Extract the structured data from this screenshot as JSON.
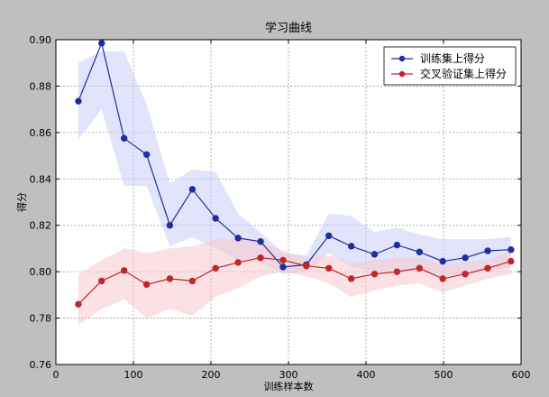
{
  "chart_data": {
    "type": "line",
    "title": "学习曲线",
    "xlabel": "训练样本数",
    "ylabel": "得分",
    "xlim": [
      0,
      600
    ],
    "ylim": [
      0.76,
      0.9
    ],
    "xticks": [
      0,
      100,
      200,
      300,
      400,
      500,
      600
    ],
    "yticks": [
      0.76,
      0.78,
      0.8,
      0.82,
      0.84,
      0.86,
      0.88,
      0.9
    ],
    "grid": true,
    "legend_position": "top-right",
    "x": [
      29,
      59,
      88,
      117,
      147,
      176,
      206,
      235,
      264,
      293,
      323,
      352,
      381,
      411,
      440,
      469,
      499,
      528,
      557,
      587
    ],
    "series": [
      {
        "name": "训练集上得分",
        "color": "#1f2f9f",
        "band_color": "#c9cef5",
        "values": [
          0.8735,
          0.8985,
          0.8575,
          0.8505,
          0.82,
          0.8355,
          0.823,
          0.8145,
          0.813,
          0.802,
          0.803,
          0.8155,
          0.811,
          0.8075,
          0.8115,
          0.8085,
          0.8045,
          0.806,
          0.809,
          0.8095
        ],
        "upper": [
          0.89,
          0.895,
          0.895,
          0.872,
          0.838,
          0.844,
          0.843,
          0.825,
          0.817,
          0.808,
          0.807,
          0.825,
          0.824,
          0.817,
          0.819,
          0.816,
          0.814,
          0.814,
          0.814,
          0.815
        ],
        "lower": [
          0.857,
          0.87,
          0.837,
          0.837,
          0.811,
          0.815,
          0.81,
          0.805,
          0.804,
          0.799,
          0.8,
          0.808,
          0.802,
          0.8,
          0.801,
          0.8,
          0.798,
          0.799,
          0.8,
          0.802
        ]
      },
      {
        "name": "交叉验证集上得分",
        "color": "#c0262b",
        "band_color": "#f7c8cd",
        "values": [
          0.786,
          0.796,
          0.8005,
          0.7945,
          0.797,
          0.796,
          0.8015,
          0.804,
          0.806,
          0.805,
          0.8025,
          0.8015,
          0.797,
          0.799,
          0.8,
          0.8015,
          0.797,
          0.799,
          0.8015,
          0.8045
        ],
        "upper": [
          0.799,
          0.805,
          0.81,
          0.808,
          0.81,
          0.811,
          0.814,
          0.814,
          0.813,
          0.809,
          0.806,
          0.807,
          0.804,
          0.805,
          0.806,
          0.806,
          0.803,
          0.804,
          0.805,
          0.809
        ],
        "lower": [
          0.777,
          0.784,
          0.788,
          0.78,
          0.784,
          0.781,
          0.789,
          0.793,
          0.798,
          0.8,
          0.798,
          0.795,
          0.789,
          0.792,
          0.794,
          0.795,
          0.791,
          0.794,
          0.797,
          0.799
        ]
      }
    ]
  }
}
